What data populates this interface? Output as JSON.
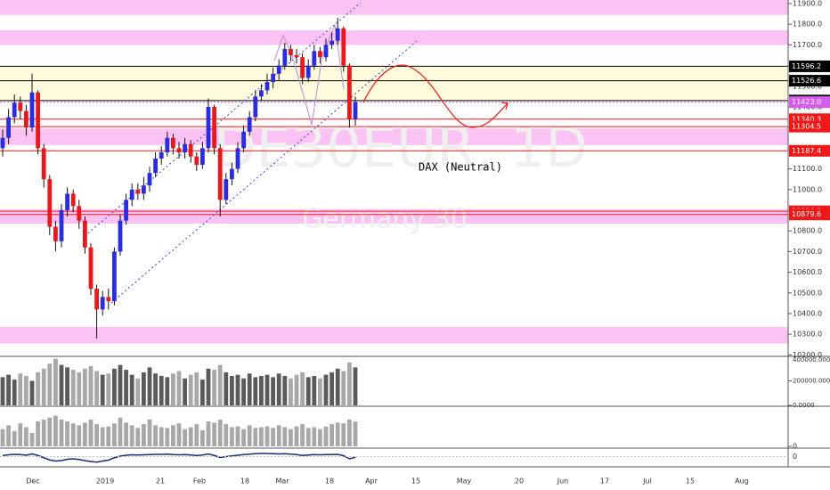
{
  "chart_data": {
    "type": "candlestick",
    "watermark": "DE30EUR, 1D",
    "watermark_subtitle": "Germany 30",
    "annotation": "DAX (Neutral)",
    "up_color": "#2b2be0",
    "down_color": "#e8191c",
    "open": [
      11200,
      11250,
      11350,
      11420,
      11380,
      11300,
      11470,
      11200,
      11050,
      10820,
      10750,
      10900,
      10980,
      10920,
      10850,
      10720,
      10520,
      10420,
      10480,
      10460,
      10700,
      10850,
      10950,
      11000,
      10980,
      11020,
      11080,
      11150,
      11180,
      11250,
      11200,
      11180,
      11220,
      11160,
      11120,
      11200,
      11400,
      11200,
      10950,
      11050,
      11100,
      11200,
      11280,
      11350,
      11450,
      11480,
      11520,
      11560,
      11600,
      11680,
      11650,
      11640,
      11540,
      11600,
      11670,
      11640,
      11700,
      11720,
      11780,
      11600,
      11340
    ],
    "high": [
      11290,
      11390,
      11460,
      11450,
      11410,
      11560,
      11480,
      11220,
      11070,
      10850,
      10930,
      11010,
      11000,
      10950,
      10870,
      10740,
      10540,
      10510,
      10520,
      10720,
      10880,
      10980,
      11030,
      11030,
      11060,
      11110,
      11180,
      11210,
      11280,
      11270,
      11230,
      11250,
      11240,
      11180,
      11230,
      11440,
      11410,
      11220,
      11080,
      11130,
      11230,
      11310,
      11380,
      11480,
      11510,
      11560,
      11590,
      11630,
      11710,
      11700,
      11680,
      11660,
      11630,
      11700,
      11690,
      11730,
      11760,
      11830,
      11790,
      11610,
      11450
    ],
    "low": [
      11160,
      11220,
      11320,
      11340,
      11260,
      11280,
      11170,
      11010,
      10780,
      10700,
      10720,
      10870,
      10890,
      10810,
      10690,
      10490,
      10280,
      10390,
      10420,
      10440,
      10680,
      10830,
      10920,
      10950,
      10950,
      10990,
      11060,
      11120,
      11160,
      11170,
      11150,
      11150,
      11130,
      11090,
      11100,
      11180,
      11170,
      10870,
      10930,
      11020,
      11080,
      11180,
      11260,
      11330,
      11430,
      11460,
      11490,
      11530,
      11580,
      11620,
      11610,
      11510,
      11520,
      11580,
      11610,
      11620,
      11680,
      11700,
      11570,
      11300,
      11310
    ],
    "close": [
      11250,
      11350,
      11420,
      11380,
      11300,
      11470,
      11200,
      11050,
      10820,
      10750,
      10900,
      10980,
      10920,
      10850,
      10720,
      10520,
      10420,
      10480,
      10460,
      10700,
      10850,
      10950,
      11000,
      10980,
      11020,
      11080,
      11150,
      11180,
      11250,
      11200,
      11180,
      11220,
      11160,
      11120,
      11200,
      11400,
      11200,
      10950,
      11050,
      11100,
      11200,
      11280,
      11350,
      11450,
      11480,
      11520,
      11560,
      11600,
      11680,
      11650,
      11640,
      11540,
      11600,
      11670,
      11640,
      11700,
      11720,
      11780,
      11600,
      11340,
      11423
    ],
    "ylim": [
      10193,
      11917
    ],
    "yticks": [
      {
        "value": 11900,
        "label": "11900.0"
      },
      {
        "value": 11800,
        "label": "11800.0"
      },
      {
        "value": 11700,
        "label": "11700.0"
      },
      {
        "value": 11600,
        "label": "11600.0"
      },
      {
        "value": 11500,
        "label": "11500.0"
      },
      {
        "value": 11400,
        "label": "11400.0"
      },
      {
        "value": 11300,
        "label": "11300.0"
      },
      {
        "value": 11200,
        "label": "11200.0"
      },
      {
        "value": 11100,
        "label": "11100.0"
      },
      {
        "value": 11000,
        "label": "11000.0"
      },
      {
        "value": 10900,
        "label": "10900.0"
      },
      {
        "value": 10800,
        "label": "10800.0"
      },
      {
        "value": 10700,
        "label": "10700.0"
      },
      {
        "value": 10600,
        "label": "10600.0"
      },
      {
        "value": 10500,
        "label": "10500.0"
      },
      {
        "value": 10400,
        "label": "10400.0"
      },
      {
        "value": 10300,
        "label": "10300.0"
      },
      {
        "value": 10200,
        "label": "10200.0"
      }
    ],
    "zones": [
      {
        "from": 11845,
        "to": 11917,
        "color": "#fbc3f3"
      },
      {
        "from": 11700,
        "to": 11770,
        "color": "#fbc3f3"
      },
      {
        "from": 11430.5,
        "to": 11596.2,
        "color": "#fffbdc"
      },
      {
        "from": 11215,
        "to": 11295,
        "color": "#fbc3f3"
      },
      {
        "from": 10835,
        "to": 10905,
        "color": "#fbc3f3"
      },
      {
        "from": 10255,
        "to": 10335,
        "color": "#fbc3f3"
      }
    ],
    "levels": [
      {
        "value": 11596.2,
        "color": "#000000"
      },
      {
        "value": 11526.6,
        "color": "#000000"
      },
      {
        "value": 11430.5,
        "color": "#000000"
      },
      {
        "value": 11423,
        "label": "11423.0",
        "color": "#d65cf0",
        "dash": true
      },
      {
        "value": 11340.3,
        "color": "#f01818"
      },
      {
        "value": 11304.5,
        "color": "#f01818"
      },
      {
        "value": 11187.4,
        "color": "#f01818"
      },
      {
        "value": 10894.8,
        "color": "#f01818"
      },
      {
        "value": 10879.6,
        "color": "#f01818"
      }
    ],
    "x_labels": [
      "Dec",
      "2019",
      "21",
      "Feb",
      "18",
      "Mar",
      "18",
      "Apr",
      "15",
      "May",
      "20",
      "Jun",
      "17",
      "Jul",
      "15",
      "Aug"
    ],
    "volume": {
      "values": [
        230000,
        250000,
        210000,
        260000,
        240000,
        200000,
        270000,
        300000,
        340000,
        380000,
        330000,
        310000,
        290000,
        270000,
        300000,
        320000,
        280000,
        250000,
        260000,
        300000,
        330000,
        290000,
        250000,
        220000,
        270000,
        310000,
        260000,
        240000,
        230000,
        260000,
        280000,
        220000,
        250000,
        270000,
        210000,
        300000,
        290000,
        330000,
        270000,
        240000,
        250000,
        220000,
        260000,
        230000,
        240000,
        250000,
        230000,
        260000,
        240000,
        220000,
        250000,
        270000,
        230000,
        240000,
        220000,
        250000,
        270000,
        300000,
        280000,
        350000,
        310000
      ],
      "up_color": "#5a5a5a",
      "down_color": "#a8a8a8",
      "ylim": [
        0,
        400000
      ],
      "yticks": [
        {
          "value": 400000,
          "label": "400000.0000"
        },
        {
          "value": 200000,
          "label": "200000.0000"
        },
        {
          "value": 0,
          "label": "0.0000"
        }
      ]
    },
    "pane2": {
      "values": [
        45,
        55,
        40,
        60,
        50,
        35,
        65,
        70,
        75,
        80,
        70,
        65,
        60,
        55,
        62,
        70,
        58,
        50,
        52,
        60,
        75,
        62,
        55,
        48,
        58,
        70,
        55,
        50,
        48,
        55,
        60,
        45,
        50,
        58,
        42,
        65,
        62,
        70,
        58,
        50,
        52,
        45,
        55,
        48,
        50,
        52,
        48,
        55,
        50,
        45,
        52,
        58,
        48,
        50,
        45,
        52,
        58,
        62,
        60,
        70,
        65
      ],
      "color": "#a8a8a8",
      "ylim": [
        0,
        100
      ],
      "yticks": [
        0
      ]
    },
    "oscillator": {
      "values": [
        0.5,
        0.8,
        1.0,
        0.9,
        0.6,
        1.2,
        0.5,
        -0.5,
        -1.5,
        -2.0,
        -1.8,
        -1.2,
        -1.0,
        -1.3,
        -1.8,
        -2.2,
        -2.5,
        -2.0,
        -1.6,
        -0.5,
        0.2,
        0.6,
        0.8,
        0.7,
        0.8,
        0.9,
        1.0,
        1.0,
        1.1,
        0.9,
        0.8,
        0.9,
        0.7,
        0.5,
        0.7,
        1.2,
        0.5,
        -0.4,
        0.0,
        0.3,
        0.6,
        0.9,
        1.1,
        1.3,
        1.4,
        1.4,
        1.3,
        1.2,
        1.3,
        1.1,
        0.9,
        0.5,
        0.7,
        0.9,
        0.8,
        0.9,
        0.9,
        1.0,
        0.4,
        -1.0,
        -0.3
      ],
      "color": "#1f2a6e",
      "ylim": [
        -3,
        3
      ],
      "yticks": [
        0
      ]
    }
  }
}
